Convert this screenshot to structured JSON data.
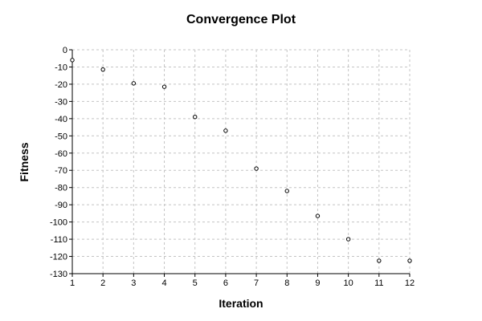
{
  "chart_data": {
    "type": "scatter",
    "title": "Convergence Plot",
    "xlabel": "Iteration",
    "ylabel": "Fitness",
    "xlim": [
      1,
      12
    ],
    "ylim": [
      -130,
      0
    ],
    "x_ticks": [
      1,
      2,
      3,
      4,
      5,
      6,
      7,
      8,
      9,
      10,
      11,
      12
    ],
    "y_ticks": [
      0,
      -10,
      -20,
      -30,
      -40,
      -50,
      -60,
      -70,
      -80,
      -90,
      -100,
      -110,
      -120,
      -130
    ],
    "grid": true,
    "legend": "none",
    "marker": "hollow-circle",
    "colors": {
      "marker_edge": "#000000",
      "grid": "#c4c4c4"
    },
    "x": [
      1,
      2,
      3,
      4,
      5,
      6,
      7,
      8,
      9,
      10,
      11,
      12
    ],
    "y": [
      -6,
      -11.5,
      -19.5,
      -21.5,
      -39,
      -47,
      -69,
      -82,
      -96.5,
      -110,
      -122.5,
      -122.5
    ]
  }
}
